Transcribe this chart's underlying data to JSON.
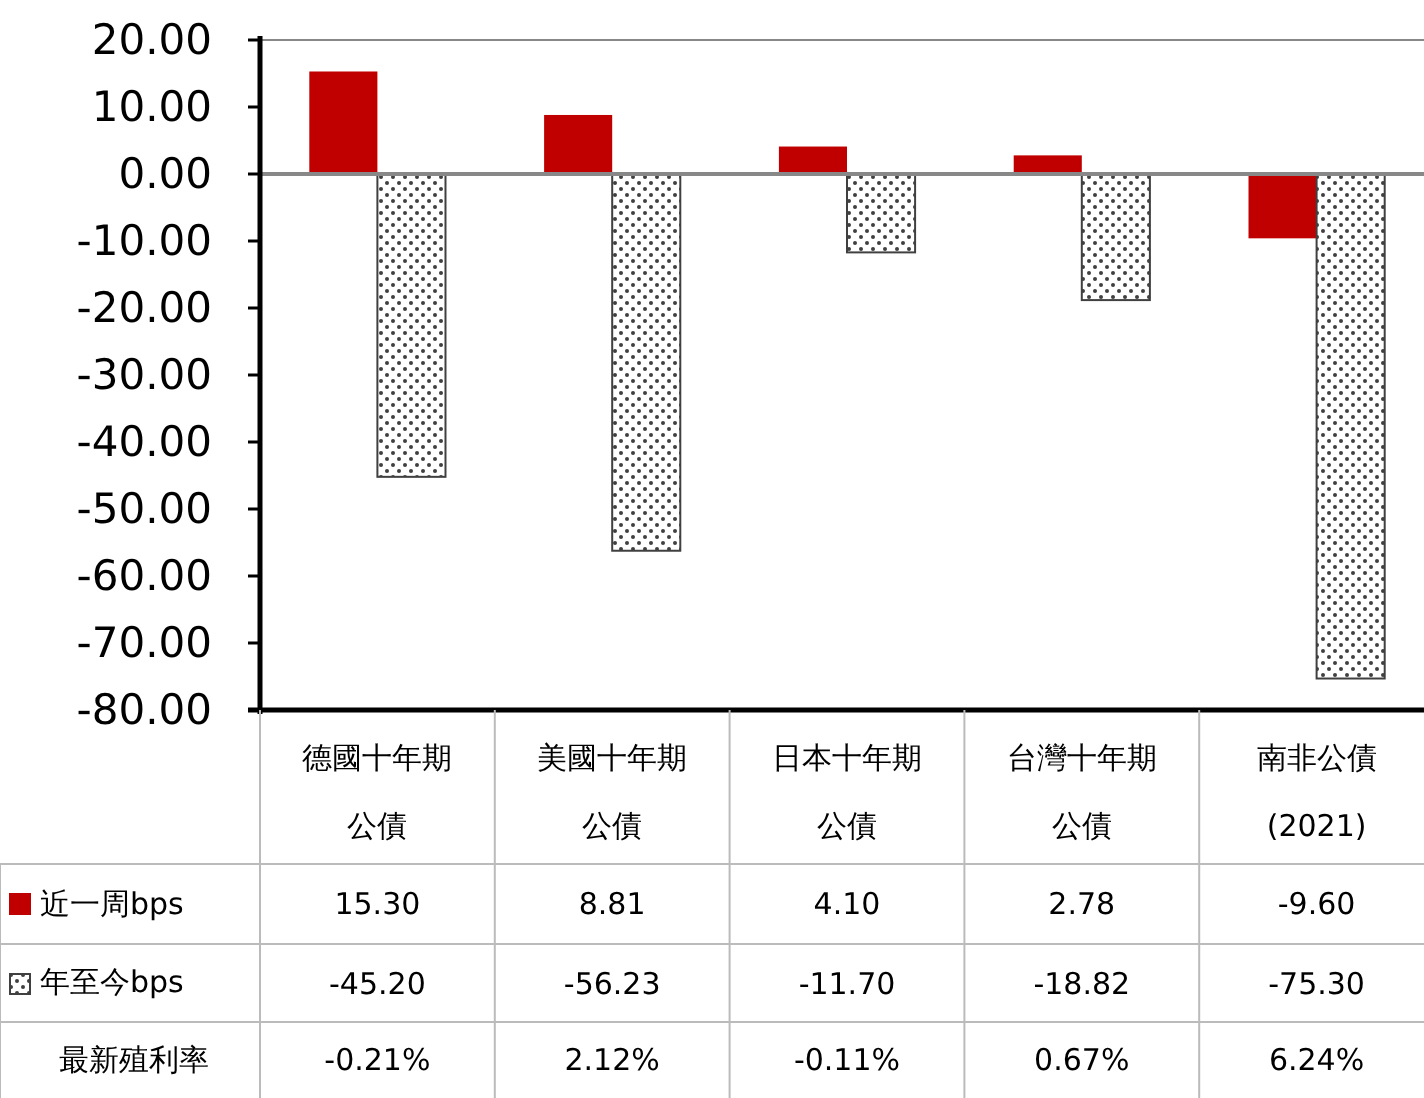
{
  "chart_data": {
    "type": "bar",
    "categories": [
      "德國十年期公債",
      "美國十年期公債",
      "日本十年期公債",
      "台灣十年期公債",
      "南非公債(2021)"
    ],
    "series": [
      {
        "name": "近一周bps",
        "color": "#c00000",
        "values": [
          15.3,
          8.81,
          4.1,
          2.78,
          -9.6
        ],
        "value_labels": [
          "15.30",
          "8.81",
          "4.10",
          "2.78",
          "-9.60"
        ]
      },
      {
        "name": "年至今bps",
        "color": "#404040",
        "values": [
          -45.2,
          -56.23,
          -11.7,
          -18.82,
          -75.3
        ],
        "value_labels": [
          "-45.20",
          "-56.23",
          "-11.70",
          "-18.82",
          "-75.30"
        ]
      }
    ],
    "ylim": [
      -80,
      20
    ],
    "yticks": [
      {
        "value": 20,
        "label": "20.00"
      },
      {
        "value": 10,
        "label": "10.00"
      },
      {
        "value": 0,
        "label": "0.00"
      },
      {
        "value": -10,
        "label": "-10.00"
      },
      {
        "value": -20,
        "label": "-20.00"
      },
      {
        "value": -30,
        "label": "-30.00"
      },
      {
        "value": -40,
        "label": "-40.00"
      },
      {
        "value": -50,
        "label": "-50.00"
      },
      {
        "value": -60,
        "label": "-60.00"
      },
      {
        "value": -70,
        "label": "-70.00"
      },
      {
        "value": -80,
        "label": "-80.00"
      }
    ],
    "legend": "bottom left",
    "annotations": [
      "最新殖利率",
      "-0.21%",
      "2.12%",
      "-0.11%",
      "0.67%",
      "6.24%"
    ]
  }
}
